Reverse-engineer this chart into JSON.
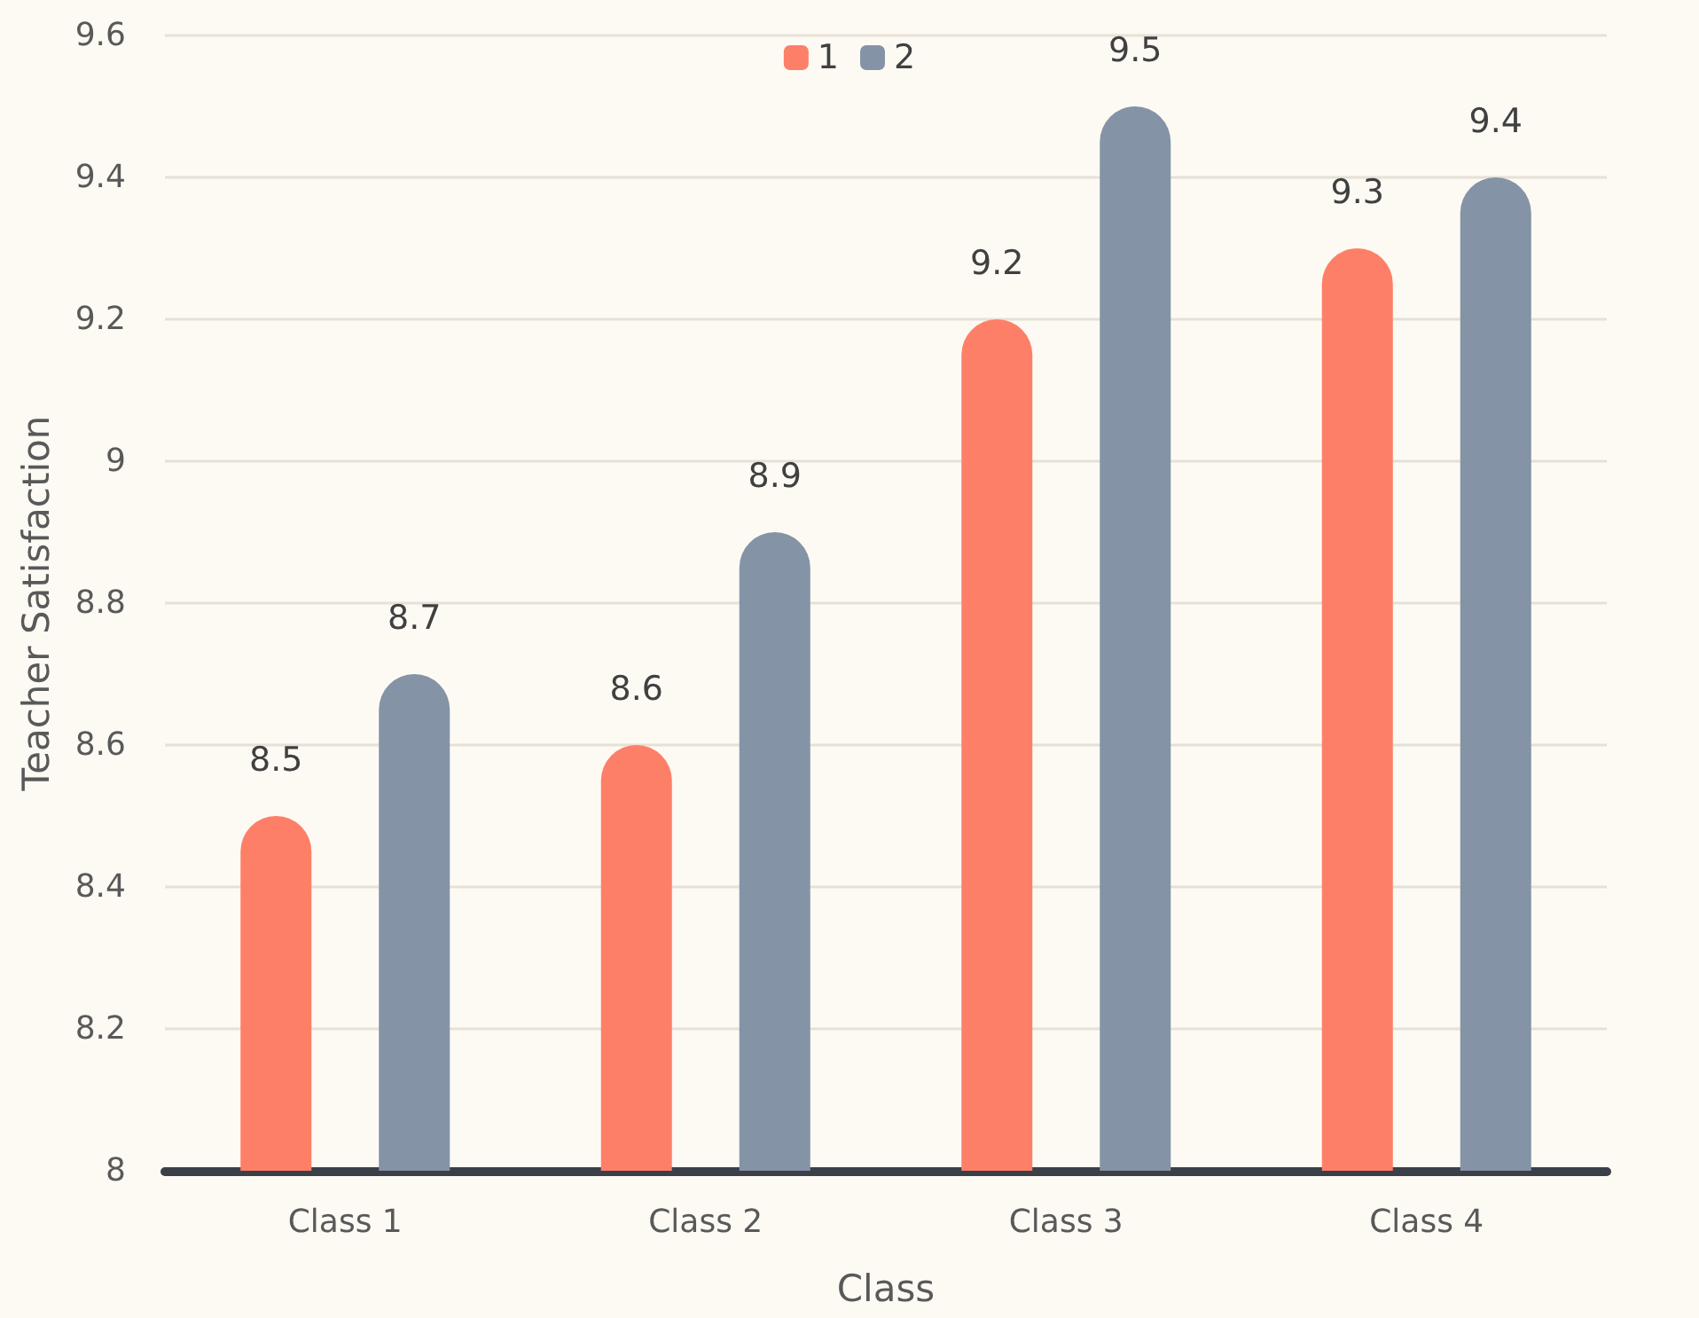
{
  "chart_data": {
    "type": "bar",
    "categories": [
      "Class 1",
      "Class 2",
      "Class 3",
      "Class 4"
    ],
    "xlabel": "Class",
    "ylabel": "Teacher Satisfaction",
    "series": [
      {
        "name": "1",
        "color": "#fe7f67",
        "values": [
          8.5,
          8.6,
          9.2,
          9.3
        ]
      },
      {
        "name": "2",
        "color": "#8593a6",
        "values": [
          8.7,
          8.9,
          9.5,
          9.4
        ]
      }
    ],
    "ylim": [
      8,
      9.6
    ],
    "yticks": [
      8,
      8.2,
      8.4,
      8.6,
      8.8,
      9,
      9.2,
      9.4,
      9.6
    ],
    "grid": "y",
    "legend": "top",
    "data_labels": true
  }
}
